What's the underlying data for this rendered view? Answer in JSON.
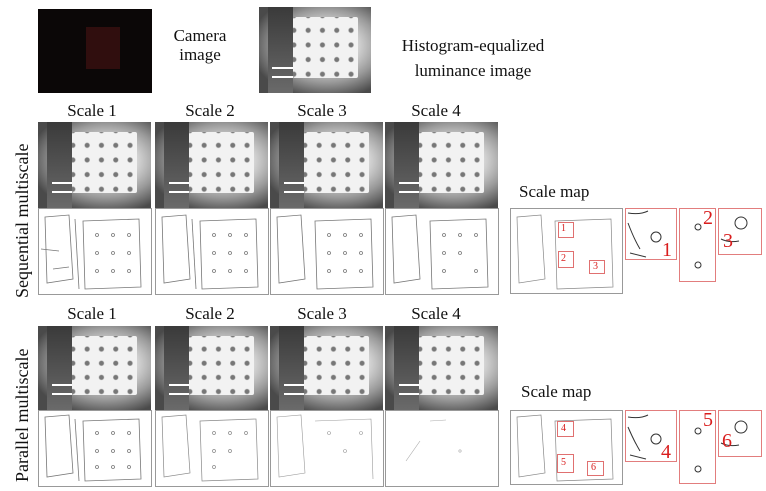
{
  "top": {
    "camera_label_line1": "Camera",
    "camera_label_line2": "image",
    "hist_label_line1": "Histogram-equalized",
    "hist_label_line2": "luminance image"
  },
  "sequential": {
    "row_label": "Sequential multiscale",
    "scales": [
      "Scale 1",
      "Scale 2",
      "Scale 3",
      "Scale 4"
    ],
    "scale_map_label": "Scale map",
    "region_numbers": [
      "1",
      "2",
      "3"
    ]
  },
  "parallel": {
    "row_label": "Parallel multiscale",
    "scales": [
      "Scale 1",
      "Scale 2",
      "Scale 3",
      "Scale 4"
    ],
    "scale_map_label": "Scale map",
    "region_numbers": [
      "4",
      "5",
      "6"
    ]
  },
  "colors": {
    "annotation_red": "#d91d1d"
  }
}
